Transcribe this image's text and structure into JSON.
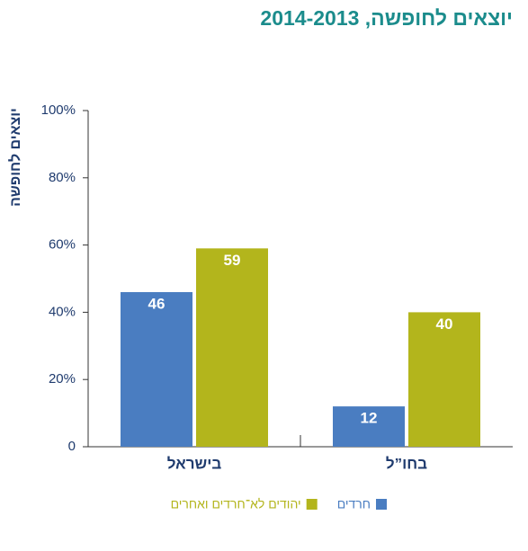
{
  "chart_data": {
    "type": "bar",
    "title": "יוצאים לחופשה, 2014-2013",
    "y_label": "יוצאים לחופשה",
    "categories": [
      "בישראל",
      "בחו”ל"
    ],
    "series": [
      {
        "name": "חרדים",
        "color": "#4a7dc1",
        "values": [
          46,
          12
        ]
      },
      {
        "name": "יהודים לא־חרדים ואחרים",
        "color": "#b3b51c",
        "values": [
          59,
          40
        ]
      }
    ],
    "ylim": [
      0,
      100
    ],
    "yticks": [
      0,
      {
        "value": 20,
        "label": "20%"
      },
      {
        "value": 40,
        "label": "40%"
      },
      {
        "value": 60,
        "label": "60%"
      },
      {
        "value": 80,
        "label": "80%"
      },
      {
        "value": 100,
        "label": "100%"
      }
    ]
  }
}
